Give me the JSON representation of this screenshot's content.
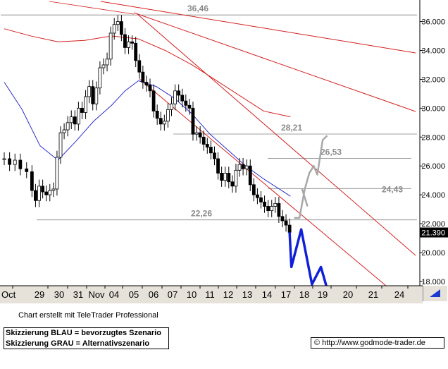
{
  "chart_data": {
    "type": "candlestick",
    "x_labels": [
      "Oct",
      "29",
      "30",
      "31",
      "Nov",
      "04",
      "05",
      "06",
      "07",
      "10",
      "11",
      "12",
      "13",
      "14",
      "17",
      "18",
      "19",
      "20",
      "21",
      "24"
    ],
    "y_ticks": [
      "36.000",
      "34.000",
      "32.000",
      "30.000",
      "28.000",
      "26.000",
      "24.000",
      "22.000",
      "20.000",
      "18.000"
    ],
    "ylim": [
      17.7,
      37.3
    ],
    "last_price": "21.390",
    "levels": [
      {
        "label": "36,46",
        "value": 36.46
      },
      {
        "label": "28,21",
        "value": 28.21
      },
      {
        "label": "26,53",
        "value": 26.53
      },
      {
        "label": "24,43",
        "value": 24.43
      },
      {
        "label": "22,26",
        "value": 22.26
      }
    ],
    "price_path": [
      [
        0,
        26.5
      ],
      [
        1.2,
        26.1
      ],
      [
        2.4,
        26.4
      ],
      [
        3.6,
        25.8
      ],
      [
        5,
        25.6
      ],
      [
        6.2,
        24.3
      ],
      [
        7,
        23.6
      ],
      [
        7.8,
        24.6
      ],
      [
        8.6,
        24.2
      ],
      [
        9.4,
        24.0
      ],
      [
        10.2,
        24.3
      ],
      [
        11,
        24.4
      ],
      [
        11.8,
        26.6
      ],
      [
        12.6,
        28.3
      ],
      [
        13.4,
        28.5
      ],
      [
        14.2,
        29.0
      ],
      [
        15,
        29.4
      ],
      [
        15.8,
        28.9
      ],
      [
        16.6,
        30.0
      ],
      [
        17.4,
        29.7
      ],
      [
        18.2,
        30.8
      ],
      [
        19,
        31.5
      ],
      [
        19.8,
        30.3
      ],
      [
        20.6,
        31.4
      ],
      [
        21.4,
        32.8
      ],
      [
        22.2,
        33.0
      ],
      [
        23,
        33.4
      ],
      [
        23.8,
        35.2
      ],
      [
        24.6,
        35.8
      ],
      [
        25.4,
        36.0
      ],
      [
        26.2,
        35.1
      ],
      [
        27,
        34.2
      ],
      [
        27.8,
        34.6
      ],
      [
        28.6,
        34.5
      ],
      [
        29.4,
        33.3
      ],
      [
        30.2,
        32.5
      ],
      [
        31,
        31.8
      ],
      [
        31.8,
        31.6
      ],
      [
        32.6,
        31.2
      ],
      [
        33.4,
        29.8
      ],
      [
        34.2,
        29.3
      ],
      [
        35,
        28.9
      ],
      [
        35.8,
        29.1
      ],
      [
        36.6,
        29.9
      ],
      [
        37.4,
        30.3
      ],
      [
        38.2,
        31.2
      ],
      [
        39,
        30.9
      ],
      [
        39.8,
        30.5
      ],
      [
        40.6,
        30.2
      ],
      [
        41.4,
        30.0
      ],
      [
        42.2,
        28.2
      ],
      [
        43,
        28.3
      ],
      [
        43.8,
        28.0
      ],
      [
        44.6,
        27.5
      ],
      [
        45.4,
        27.3
      ],
      [
        46.2,
        26.9
      ],
      [
        47,
        26.5
      ],
      [
        47.8,
        25.5
      ],
      [
        48.6,
        25.0
      ],
      [
        49.4,
        25.5
      ],
      [
        50.2,
        24.9
      ],
      [
        51,
        24.6
      ],
      [
        51.8,
        25.7
      ],
      [
        52.6,
        26.1
      ],
      [
        53.4,
        25.8
      ],
      [
        54.2,
        26.0
      ],
      [
        55,
        24.7
      ],
      [
        55.8,
        24.0
      ],
      [
        56.6,
        23.8
      ],
      [
        57.4,
        23.5
      ],
      [
        58.2,
        23.2
      ],
      [
        59,
        22.9
      ],
      [
        59.8,
        23.2
      ],
      [
        60.6,
        23.4
      ],
      [
        61.4,
        22.5
      ],
      [
        62.2,
        22.2
      ],
      [
        63,
        21.9
      ],
      [
        63.8,
        21.4
      ]
    ],
    "series": [
      {
        "color": "#2a2fc8",
        "values": [
          [
            0,
            31.8
          ],
          [
            4,
            29.9
          ],
          [
            8,
            27.4
          ],
          [
            12,
            26.4
          ],
          [
            16,
            27.7
          ],
          [
            20,
            29.1
          ],
          [
            24,
            30.2
          ],
          [
            27,
            31.2
          ],
          [
            30,
            31.9
          ],
          [
            34,
            31.5
          ],
          [
            38,
            30.7
          ],
          [
            42,
            29.6
          ],
          [
            46,
            28.2
          ],
          [
            50,
            27.1
          ],
          [
            54,
            26.0
          ],
          [
            58,
            25.1
          ],
          [
            62,
            24.3
          ],
          [
            64,
            23.9
          ]
        ]
      },
      {
        "color": "#d42020",
        "values": [
          [
            0,
            35.5
          ],
          [
            6,
            35.0
          ],
          [
            12,
            34.6
          ],
          [
            18,
            34.7
          ],
          [
            24,
            35.0
          ],
          [
            30,
            34.8
          ],
          [
            36,
            34.0
          ],
          [
            42,
            33.0
          ],
          [
            50,
            31.4
          ],
          [
            58,
            29.8
          ],
          [
            64,
            29.4
          ]
        ]
      }
    ],
    "scenario_blue": [
      [
        63.8,
        21.4
      ],
      [
        64.2,
        19.0
      ],
      [
        66.4,
        21.6
      ],
      [
        68.8,
        17.8
      ],
      [
        70.8,
        19.0
      ],
      [
        72,
        17.7
      ]
    ],
    "scenario_gray": [
      [
        64.8,
        22.4
      ],
      [
        66.0,
        22.4
      ],
      [
        67.2,
        24.4
      ],
      [
        68.2,
        25.5
      ],
      [
        69.2,
        26.0
      ],
      [
        70.0,
        25.4
      ],
      [
        71.2,
        27.8
      ],
      [
        72.2,
        28.1
      ]
    ],
    "scenario_gray_branch": [
      [
        66.6,
        24.4
      ],
      [
        67.8,
        23.2
      ]
    ]
  },
  "footer": {
    "credit": "Chart erstellt mit TeleTrader Professional",
    "legend_blue": "Skizzierung BLAU = bevorzugtes Szenario",
    "legend_gray": "Skizzierung GRAU = Alternativszenario",
    "url": "© http://www.godmode-trader.de"
  },
  "colors": {
    "price": "#000000",
    "blue_scenario": "#1020d8",
    "gray_scenario": "#a8a8a8",
    "trend": "#d42020",
    "grid": "#808080",
    "scrollbar": "#1a3ad0"
  }
}
